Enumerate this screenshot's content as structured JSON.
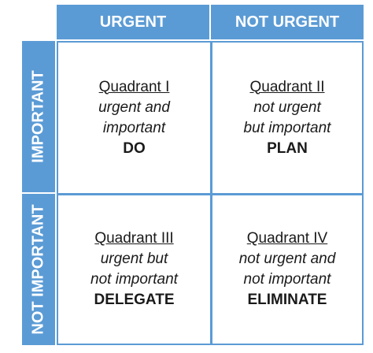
{
  "columns": {
    "urgent": "URGENT",
    "not_urgent": "NOT URGENT"
  },
  "rows": {
    "important": "IMPORTANT",
    "not_important": "NOT IMPORTANT"
  },
  "quadrants": [
    {
      "title": "Quadrant I",
      "desc": [
        "urgent and",
        "important"
      ],
      "action": "DO"
    },
    {
      "title": "Quadrant II",
      "desc": [
        "not urgent",
        "but important"
      ],
      "action": "PLAN"
    },
    {
      "title": "Quadrant III",
      "desc": [
        "urgent but",
        "not important"
      ],
      "action": "DELEGATE"
    },
    {
      "title": "Quadrant IV",
      "desc": [
        "not urgent and",
        "not important"
      ],
      "action": "ELIMINATE"
    }
  ],
  "colors": {
    "header_bg": "#5b9bd5",
    "header_text": "#ffffff",
    "cell_bg": "#ffffff"
  }
}
